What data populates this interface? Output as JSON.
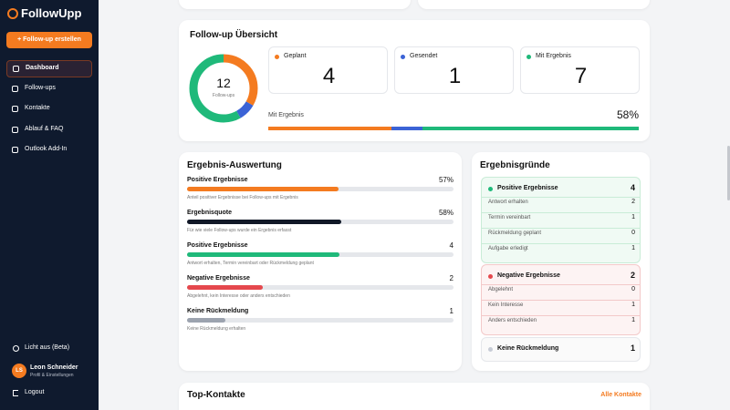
{
  "sidebar": {
    "logo": "FollowUpp",
    "create_button": "+ Follow-up erstellen",
    "nav": [
      "Dashboard",
      "Follow-ups",
      "Kontakte",
      "Ablauf & FAQ",
      "Outlook Add-In"
    ],
    "theme_toggle": "Licht aus (Beta)",
    "user": {
      "initials": "LS",
      "name": "Leon Schneider",
      "subtitle": "Profil & Einstellungen"
    },
    "logout": "Logout"
  },
  "overview": {
    "title": "Follow-up Übersicht",
    "total": 12,
    "total_label": "Follow-ups",
    "stats": [
      {
        "label": "Geplant",
        "value": 4,
        "color": "#f47b20"
      },
      {
        "label": "Gesendet",
        "value": 1,
        "color": "#3b63d6"
      },
      {
        "label": "Mit Ergebnis",
        "value": 7,
        "color": "#1fb97a"
      }
    ],
    "progress": {
      "label": "Mit Ergebnis",
      "value": 58,
      "value_label": "58%"
    }
  },
  "evaluation": {
    "title": "Ergebnis-Auswertung",
    "rows": [
      {
        "label": "Positive Ergebnisse",
        "value": 57,
        "value_label": "57%",
        "color": "#f47b20",
        "description": "Anteil positiver Ergebnisse bei Follow-ups mit Ergebnis"
      },
      {
        "label": "Ergebnisquote",
        "value": 58,
        "value_label": "58%",
        "color": "#111827",
        "description": "Für wie viele Follow-ups wurde ein Ergebnis erfasst"
      },
      {
        "label": "Positive Ergebnisse",
        "value": 4,
        "color": "#1fb97a",
        "description": "Antwort erhalten, Termin vereinbart oder Rückmeldung geplant"
      },
      {
        "label": "Negative Ergebnisse",
        "value": 2,
        "color": "#e5484d",
        "description": "Abgelehnt, kein Interesse oder anders entschieden"
      },
      {
        "label": "Keine Rückmeldung",
        "value": 1,
        "color": "#9ca3af",
        "description": "Keine Rückmeldung erhalten"
      }
    ]
  },
  "reasons": {
    "title": "Ergebnisgründe",
    "groups": [
      {
        "title": "Positive Ergebnisse",
        "count": 4,
        "color": "#1fb97a",
        "items": [
          {
            "label": "Antwort erhalten",
            "count": 2
          },
          {
            "label": "Termin vereinbart",
            "count": 1
          },
          {
            "label": "Rückmeldung geplant",
            "count": 0
          },
          {
            "label": "Aufgabe erledigt",
            "count": 1
          }
        ]
      },
      {
        "title": "Negative Ergebnisse",
        "count": 2,
        "color": "#e5484d",
        "items": [
          {
            "label": "Abgelehnt",
            "count": 0
          },
          {
            "label": "Kein Interesse",
            "count": 1
          },
          {
            "label": "Anders entschieden",
            "count": 1
          }
        ]
      },
      {
        "title": "Keine Rückmeldung",
        "count": 1,
        "color": "#c7ccd6",
        "items": []
      }
    ]
  },
  "top_contacts": {
    "title": "Top-Kontakte",
    "link": "Alle Kontakte"
  }
}
